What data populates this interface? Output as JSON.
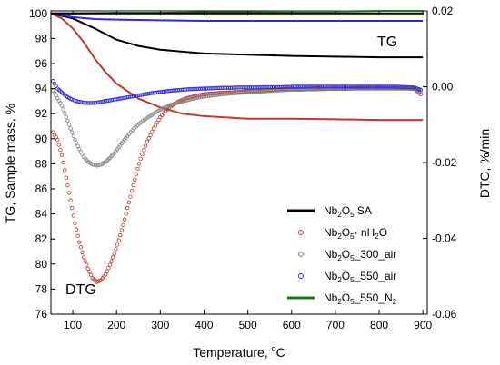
{
  "chart_data": {
    "type": "line",
    "annotations": {
      "tg": "TG",
      "dtg": "DTG"
    },
    "x_axis": {
      "label_main": "Temperature, ",
      "label_sup": "o",
      "label_end": "C",
      "range": [
        50,
        910
      ],
      "ticks": [
        100,
        200,
        300,
        400,
        500,
        600,
        700,
        800,
        900
      ]
    },
    "y_left": {
      "label": "TG, Sample mass, %",
      "range": [
        76,
        100.2
      ],
      "ticks": [
        76,
        78,
        80,
        82,
        84,
        86,
        88,
        90,
        92,
        94,
        96,
        98,
        100
      ]
    },
    "y_right": {
      "label": "DTG, %/min",
      "range": [
        -0.06,
        0.02
      ],
      "ticks": [
        -0.06,
        -0.04,
        -0.02,
        0.0,
        0.02
      ],
      "tick_labels": [
        "-0.06",
        "-0.04",
        "-0.02",
        "0.00",
        "0.02"
      ]
    },
    "legend": {
      "placement": "bottom-right",
      "items": [
        {
          "parts": [
            [
              "Nb",
              ""
            ],
            [
              "2",
              "sub"
            ],
            [
              "O",
              ""
            ],
            [
              "5",
              "sub"
            ],
            [
              " SA",
              ""
            ]
          ],
          "marker": "line",
          "color": "#000000"
        },
        {
          "parts": [
            [
              "Nb",
              ""
            ],
            [
              "2",
              "sub"
            ],
            [
              "O",
              ""
            ],
            [
              "5",
              "sub"
            ],
            [
              "· nH",
              ""
            ],
            [
              "2",
              "sub"
            ],
            [
              "O",
              ""
            ]
          ],
          "marker": "circle",
          "color": "#c0392b"
        },
        {
          "parts": [
            [
              "Nb",
              ""
            ],
            [
              "2",
              "sub"
            ],
            [
              "O",
              ""
            ],
            [
              "5",
              "sub"
            ],
            [
              "_300_air",
              ""
            ]
          ],
          "marker": "circle",
          "color": "#808080"
        },
        {
          "parts": [
            [
              "Nb",
              ""
            ],
            [
              "2",
              "sub"
            ],
            [
              "O",
              ""
            ],
            [
              "5",
              "sub"
            ],
            [
              "_550_air",
              ""
            ]
          ],
          "marker": "circle",
          "color": "#2c2cdc"
        },
        {
          "parts": [
            [
              "Nb",
              ""
            ],
            [
              "2",
              "sub"
            ],
            [
              "O",
              ""
            ],
            [
              "5",
              "sub"
            ],
            [
              "_550_N",
              ""
            ],
            [
              "2",
              "sub"
            ]
          ],
          "marker": "line",
          "color": "#1a7a1a"
        }
      ]
    },
    "tg_series": [
      {
        "color": "#000000",
        "x": [
          50,
          100,
          150,
          200,
          250,
          300,
          350,
          400,
          500,
          600,
          700,
          800,
          900
        ],
        "y": [
          100,
          99.6,
          98.8,
          97.9,
          97.4,
          97.1,
          96.95,
          96.8,
          96.7,
          96.6,
          96.55,
          96.5,
          96.5
        ]
      },
      {
        "color": "#c0392b",
        "x": [
          50,
          75,
          100,
          125,
          150,
          175,
          200,
          250,
          300,
          350,
          400,
          450,
          500,
          600,
          700,
          800,
          900
        ],
        "y": [
          100,
          99.6,
          98.8,
          97.7,
          96.4,
          95.3,
          94.4,
          93.2,
          92.5,
          92.0,
          91.8,
          91.7,
          91.6,
          91.6,
          91.55,
          91.5,
          91.5
        ]
      },
      {
        "color": "#2c2cdc",
        "x": [
          50,
          100,
          150,
          200,
          300,
          400,
          500,
          600,
          700,
          800,
          900
        ],
        "y": [
          100,
          99.7,
          99.55,
          99.5,
          99.45,
          99.4,
          99.4,
          99.4,
          99.4,
          99.4,
          99.4
        ]
      },
      {
        "color": "#1a7a1a",
        "x": [
          50,
          100,
          200,
          300,
          400,
          500,
          600,
          700,
          800,
          900
        ],
        "y": [
          100,
          100,
          100.05,
          100.05,
          100.1,
          100.1,
          100.15,
          100.15,
          100.2,
          100.2
        ]
      },
      {
        "color": "#000000",
        "x": [
          50,
          200,
          400,
          600,
          800,
          900
        ],
        "y": [
          100,
          100,
          100,
          100,
          100,
          100
        ]
      }
    ],
    "dtg_series": [
      {
        "color": "#c0392b",
        "x": [
          55,
          65,
          75,
          85,
          95,
          105,
          115,
          125,
          135,
          145,
          155,
          165,
          175,
          185,
          195,
          205,
          215,
          225,
          235,
          245,
          255,
          270,
          285,
          300,
          320,
          340,
          360,
          380,
          400,
          420,
          440,
          460,
          480,
          500,
          520,
          540,
          560,
          580,
          600,
          620,
          640,
          660,
          680,
          700,
          720,
          740,
          760,
          780,
          800,
          820,
          840,
          860,
          880,
          895
        ],
        "y": [
          -0.012,
          -0.014,
          -0.018,
          -0.024,
          -0.03,
          -0.036,
          -0.041,
          -0.045,
          -0.048,
          -0.0505,
          -0.0515,
          -0.051,
          -0.0495,
          -0.047,
          -0.044,
          -0.0405,
          -0.0365,
          -0.032,
          -0.0275,
          -0.023,
          -0.019,
          -0.0145,
          -0.011,
          -0.008,
          -0.0055,
          -0.004,
          -0.003,
          -0.0025,
          -0.002,
          -0.0018,
          -0.0016,
          -0.0015,
          -0.0014,
          -0.0012,
          -0.001,
          -0.0009,
          -0.0008,
          -0.0006,
          -0.0005,
          -0.0006,
          -0.0005,
          -0.0004,
          -0.0005,
          -0.0004,
          -0.0005,
          -0.0004,
          -0.0003,
          -0.0004,
          -0.0003,
          -0.0004,
          -0.0003,
          -0.0004,
          -0.0005,
          -0.002
        ]
      },
      {
        "color": "#808080",
        "x": [
          55,
          65,
          75,
          85,
          95,
          105,
          115,
          125,
          135,
          145,
          155,
          165,
          175,
          185,
          195,
          205,
          215,
          225,
          240,
          260,
          280,
          300,
          320,
          340,
          360,
          380,
          400,
          420,
          440,
          460,
          480,
          500,
          520,
          540,
          560,
          580,
          600,
          620,
          640,
          660,
          680,
          700,
          720,
          740,
          760,
          780,
          800,
          820,
          840,
          860,
          880,
          895
        ],
        "y": [
          -0.001,
          -0.003,
          -0.005,
          -0.008,
          -0.011,
          -0.014,
          -0.0165,
          -0.0185,
          -0.0198,
          -0.0205,
          -0.0208,
          -0.0205,
          -0.0198,
          -0.0188,
          -0.0175,
          -0.016,
          -0.0145,
          -0.013,
          -0.011,
          -0.009,
          -0.0075,
          -0.006,
          -0.005,
          -0.0042,
          -0.0036,
          -0.003,
          -0.0026,
          -0.0023,
          -0.002,
          -0.0018,
          -0.0016,
          -0.0015,
          -0.0013,
          -0.0012,
          -0.001,
          -0.0009,
          -0.0008,
          -0.0008,
          -0.0007,
          -0.0007,
          -0.0006,
          -0.0006,
          -0.0006,
          -0.0005,
          -0.0005,
          -0.0005,
          -0.0005,
          -0.0005,
          -0.0005,
          -0.0005,
          -0.0006,
          -0.0012
        ]
      },
      {
        "color": "#2c2cdc",
        "x": [
          55,
          65,
          75,
          85,
          95,
          105,
          115,
          125,
          135,
          145,
          155,
          165,
          175,
          185,
          200,
          220,
          240,
          260,
          280,
          300,
          320,
          340,
          360,
          380,
          400,
          420,
          440,
          460,
          480,
          500,
          520,
          540,
          560,
          580,
          600,
          620,
          640,
          660,
          680,
          700,
          720,
          740,
          760,
          780,
          800,
          820,
          840,
          860,
          880,
          895
        ],
        "y": [
          0.0015,
          -0.0005,
          -0.0015,
          -0.0025,
          -0.0032,
          -0.0037,
          -0.004,
          -0.0042,
          -0.0043,
          -0.0043,
          -0.0042,
          -0.004,
          -0.0038,
          -0.0036,
          -0.0033,
          -0.0029,
          -0.0025,
          -0.0021,
          -0.0017,
          -0.0014,
          -0.0011,
          -0.0009,
          -0.0007,
          -0.0006,
          -0.0005,
          -0.0004,
          -0.0003,
          -0.0003,
          -0.0002,
          -0.0002,
          -0.0002,
          -0.0001,
          -0.0001,
          -0.0001,
          0.0,
          0.0,
          0.0,
          0.0,
          0.0,
          0.0,
          0.0,
          0.0,
          0.0,
          0.0,
          0.0,
          0.0,
          0.0,
          -0.0001,
          -0.0002,
          -0.0008
        ]
      }
    ]
  }
}
